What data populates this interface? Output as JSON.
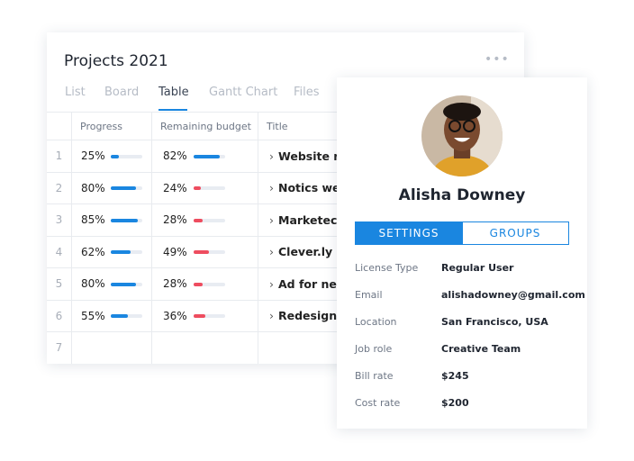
{
  "projects": {
    "title": "Projects 2021",
    "tabs": [
      "List",
      "Board",
      "Table",
      "Gantt Chart",
      "Files"
    ],
    "active_tab": 2,
    "table": {
      "columns": [
        "Progress",
        "Remaining budget",
        "Title"
      ],
      "rows": [
        {
          "index": "1",
          "progress": "25%",
          "budget": "82%",
          "title": "Website re"
        },
        {
          "index": "2",
          "progress": "80%",
          "budget": "24%",
          "title": "Notics we"
        },
        {
          "index": "3",
          "progress": "85%",
          "budget": "28%",
          "title": "Marketec"
        },
        {
          "index": "4",
          "progress": "62%",
          "budget": "49%",
          "title": "Clever.ly c"
        },
        {
          "index": "5",
          "progress": "80%",
          "budget": "28%",
          "title": "Ad for new"
        },
        {
          "index": "6",
          "progress": "55%",
          "budget": "36%",
          "title": "Redesign"
        },
        {
          "index": "7"
        }
      ]
    }
  },
  "profile": {
    "name": "Alisha Downey",
    "tabs": [
      "SETTINGS",
      "GROUPS"
    ],
    "fields": [
      {
        "label": "License Type",
        "value": "Regular User"
      },
      {
        "label": "Email",
        "value": "alishadowney@gmail.com"
      },
      {
        "label": "Location",
        "value": "San Francisco, USA"
      },
      {
        "label": "Job role",
        "value": "Creative Team"
      },
      {
        "label": "Bill rate",
        "value": "$245"
      },
      {
        "label": "Cost rate",
        "value": "$200"
      }
    ]
  }
}
